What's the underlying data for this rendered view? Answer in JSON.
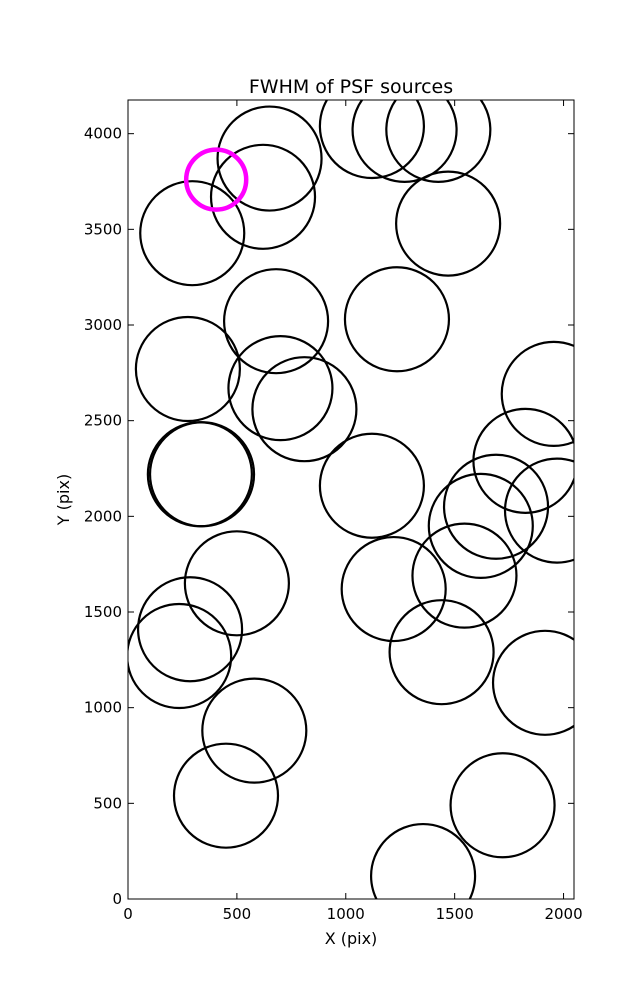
{
  "chart_data": {
    "type": "scatter",
    "title": "FWHM of PSF sources",
    "xlabel": "X (pix)",
    "ylabel": "Y (pix)",
    "xlim": [
      0,
      2048
    ],
    "ylim": [
      0,
      4176
    ],
    "grid": false,
    "x_ticks": [
      "0",
      "500",
      "1000",
      "1500",
      "2000"
    ],
    "y_ticks": [
      "0",
      "500",
      "1000",
      "1500",
      "2000",
      "2500",
      "3000",
      "3500",
      "4000"
    ],
    "marker": "circle",
    "marker_color": "#000000",
    "highlight_color": "#ff00ff",
    "series": [
      {
        "points": [
          {
            "x": 650,
            "y": 3870
          },
          {
            "x": 620,
            "y": 3670
          },
          {
            "x": 295,
            "y": 3480
          },
          {
            "x": 1120,
            "y": 4040
          },
          {
            "x": 1270,
            "y": 4020
          },
          {
            "x": 1425,
            "y": 4020
          },
          {
            "x": 1470,
            "y": 3530
          },
          {
            "x": 680,
            "y": 3020
          },
          {
            "x": 1235,
            "y": 3030
          },
          {
            "x": 275,
            "y": 2770
          },
          {
            "x": 700,
            "y": 2670
          },
          {
            "x": 810,
            "y": 2560
          },
          {
            "x": 1955,
            "y": 2640
          },
          {
            "x": 330,
            "y": 2220
          },
          {
            "x": 340,
            "y": 2220
          },
          {
            "x": 1120,
            "y": 2160
          },
          {
            "x": 1825,
            "y": 2290
          },
          {
            "x": 1970,
            "y": 2030
          },
          {
            "x": 1690,
            "y": 2050
          },
          {
            "x": 1620,
            "y": 1950
          },
          {
            "x": 500,
            "y": 1650
          },
          {
            "x": 1220,
            "y": 1620
          },
          {
            "x": 1545,
            "y": 1690
          },
          {
            "x": 285,
            "y": 1410
          },
          {
            "x": 235,
            "y": 1270
          },
          {
            "x": 1440,
            "y": 1290
          },
          {
            "x": 1915,
            "y": 1130
          },
          {
            "x": 580,
            "y": 880
          },
          {
            "x": 450,
            "y": 540
          },
          {
            "x": 1720,
            "y": 490
          },
          {
            "x": 1355,
            "y": 120
          }
        ]
      },
      {
        "highlight": true,
        "points": [
          {
            "x": 405,
            "y": 3760
          }
        ]
      }
    ]
  }
}
